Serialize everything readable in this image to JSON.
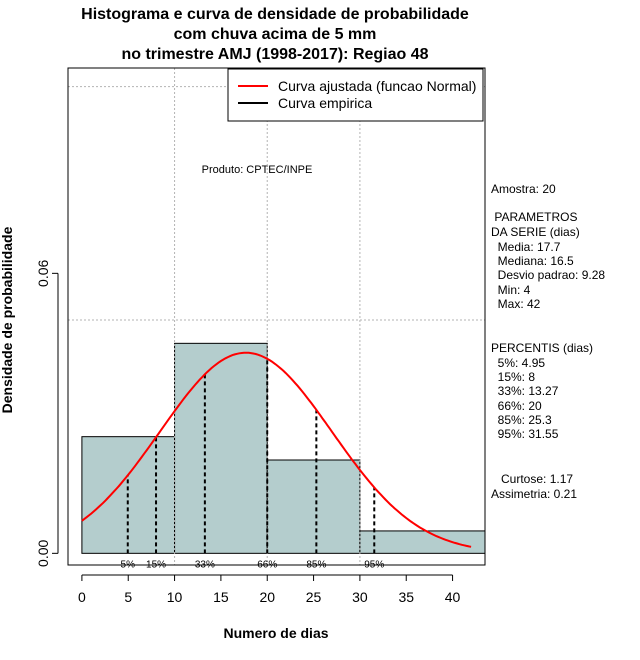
{
  "chart_data": {
    "type": "histogram",
    "title_lines": [
      "Histograma e curva de densidade de probabilidade",
      "com chuva acima de 5 mm",
      "no trimestre AMJ (1998-2017): Regiao 48"
    ],
    "xlabel": "Numero de dias",
    "ylabel": "Densidade de probabilidade",
    "xlim": [
      -1.5,
      43.5
    ],
    "ylim": [
      -0.0025,
      0.104
    ],
    "xticks": [
      "0",
      "5",
      "10",
      "15",
      "20",
      "25",
      "30",
      "35",
      "40"
    ],
    "yticks": [
      {
        "value": 0.0,
        "label": "0.00"
      },
      {
        "value": 0.06,
        "label": "0.06"
      }
    ],
    "bins": [
      {
        "start": 0,
        "end": 10,
        "density": 0.025
      },
      {
        "start": 10,
        "end": 20,
        "density": 0.045
      },
      {
        "start": 20,
        "end": 30,
        "density": 0.02
      },
      {
        "start": 30,
        "end": 44,
        "density": 0.0048
      }
    ],
    "normal_fit": {
      "mean": 17.7,
      "sd": 9.28,
      "x_range": [
        0,
        42
      ]
    },
    "percentile_lines": [
      {
        "label": "5%",
        "value": 4.95
      },
      {
        "label": "15%",
        "value": 8
      },
      {
        "label": "33%",
        "value": 13.27
      },
      {
        "label": "66%",
        "value": 20
      },
      {
        "label": "85%",
        "value": 25.3
      },
      {
        "label": "95%",
        "value": 31.55
      }
    ],
    "grid_h": [
      0.05,
      0.1
    ],
    "grid_v": [
      10,
      20,
      30
    ],
    "legend": {
      "position": "top-right",
      "entries": [
        {
          "label": "Curva ajustada (funcao Normal)",
          "color": "#ff0000"
        },
        {
          "label": "Curva empirica",
          "color": "#000000"
        }
      ]
    },
    "annotation": "Produto: CPTEC/INPE",
    "colors": {
      "bar_fill": "#b4cdcd",
      "curve": "#ff0000",
      "grid": "#b3b3b3"
    }
  },
  "stats": {
    "amostra": "Amostra: 20",
    "param_title_1": " PARAMETROS",
    "param_title_2": "DA SERIE (dias)",
    "media": "  Media: 17.7",
    "mediana": "  Mediana: 16.5",
    "desvio": "  Desvio padrao: 9.28",
    "min": "  Min: 4",
    "max": "  Max: 42",
    "percentis_title": "PERCENTIS (dias)",
    "p5": "  5%: 4.95",
    "p15": "  15%: 8",
    "p33": "  33%: 13.27",
    "p66": "  66%: 20",
    "p85": "  85%: 25.3",
    "p95": "  95%: 31.55",
    "curtose": "   Curtose: 1.17",
    "assimetria": "Assimetria: 0.21"
  }
}
